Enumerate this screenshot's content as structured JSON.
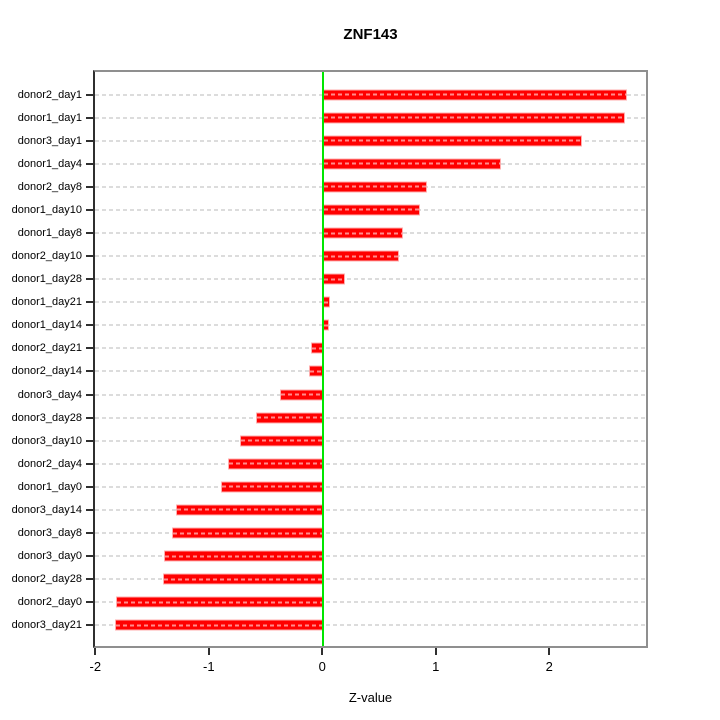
{
  "chart_data": {
    "type": "bar",
    "orientation": "horizontal",
    "title": "ZNF143",
    "xlabel": "Z-value",
    "ylabel": "",
    "categories": [
      "donor2_day1",
      "donor1_day1",
      "donor3_day1",
      "donor1_day4",
      "donor2_day8",
      "donor1_day10",
      "donor1_day8",
      "donor2_day10",
      "donor1_day28",
      "donor1_day21",
      "donor1_day14",
      "donor2_day21",
      "donor2_day14",
      "donor3_day4",
      "donor3_day28",
      "donor3_day10",
      "donor2_day4",
      "donor1_day0",
      "donor3_day14",
      "donor3_day8",
      "donor3_day0",
      "donor2_day28",
      "donor2_day0",
      "donor3_day21"
    ],
    "values": [
      2.7,
      2.68,
      2.3,
      1.58,
      0.93,
      0.86,
      0.71,
      0.68,
      0.2,
      0.07,
      0.06,
      -0.1,
      -0.12,
      -0.38,
      -0.59,
      -0.73,
      -0.84,
      -0.9,
      -1.3,
      -1.34,
      -1.41,
      -1.42,
      -1.83,
      -1.84
    ],
    "xlim": [
      -2.02,
      2.87
    ],
    "x_ticks": [
      -2,
      -1,
      0,
      1,
      2
    ],
    "grid": true,
    "zero_line_at": 0,
    "legend": "none",
    "sort_order": "descending"
  },
  "colors": {
    "bar": "#ff0000",
    "bar_border": "#ffadad",
    "bar_dash": "rgba(255,255,255,0.55)",
    "grid": "#dcdcdc",
    "zero_line": "#00e600",
    "box_border": "#8f8f8f",
    "axis": "#2f2f2f",
    "text": "#000000",
    "background": "#ffffff"
  }
}
